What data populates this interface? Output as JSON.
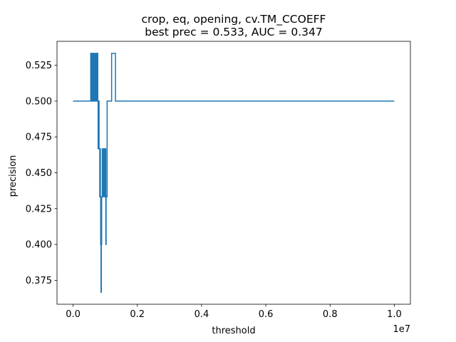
{
  "chart_data": {
    "type": "line",
    "title": "crop, eq, opening, cv.TM_CCOEFF",
    "subtitle": "best prec = 0.533, AUC = 0.347",
    "xlabel": "threshold",
    "ylabel": "precision",
    "x_offset_label": "1e7",
    "xlim": [
      -0.05,
      1.05
    ],
    "ylim": [
      0.3583,
      0.5417
    ],
    "x_ticks": [
      0.0,
      0.2,
      0.4,
      0.6,
      0.8,
      1.0
    ],
    "x_tick_labels": [
      "0.0",
      "0.2",
      "0.4",
      "0.6",
      "0.8",
      "1.0"
    ],
    "y_ticks": [
      0.375,
      0.4,
      0.425,
      0.45,
      0.475,
      0.5,
      0.525
    ],
    "y_tick_labels": [
      "0.375",
      "0.400",
      "0.425",
      "0.450",
      "0.475",
      "0.500",
      "0.525"
    ],
    "grid": false,
    "series": [
      {
        "color": "#1f77b4",
        "points": [
          [
            0.0,
            0.5
          ],
          [
            0.055,
            0.5
          ],
          [
            0.055,
            0.5333
          ],
          [
            0.057,
            0.5333
          ],
          [
            0.057,
            0.5
          ],
          [
            0.059,
            0.5
          ],
          [
            0.059,
            0.5333
          ],
          [
            0.061,
            0.5333
          ],
          [
            0.061,
            0.5
          ],
          [
            0.063,
            0.5
          ],
          [
            0.063,
            0.5333
          ],
          [
            0.065,
            0.5333
          ],
          [
            0.065,
            0.5
          ],
          [
            0.067,
            0.5
          ],
          [
            0.067,
            0.5333
          ],
          [
            0.069,
            0.5333
          ],
          [
            0.069,
            0.5
          ],
          [
            0.071,
            0.5
          ],
          [
            0.071,
            0.5333
          ],
          [
            0.073,
            0.5333
          ],
          [
            0.073,
            0.5
          ],
          [
            0.075,
            0.5
          ],
          [
            0.075,
            0.5333
          ],
          [
            0.077,
            0.5333
          ],
          [
            0.077,
            0.5
          ],
          [
            0.078,
            0.5
          ],
          [
            0.078,
            0.4667
          ],
          [
            0.08,
            0.4667
          ],
          [
            0.08,
            0.5
          ],
          [
            0.081,
            0.5
          ],
          [
            0.081,
            0.4667
          ],
          [
            0.083,
            0.4667
          ],
          [
            0.083,
            0.4333
          ],
          [
            0.084,
            0.4333
          ],
          [
            0.084,
            0.4667
          ],
          [
            0.085,
            0.4667
          ],
          [
            0.085,
            0.4333
          ],
          [
            0.086,
            0.4333
          ],
          [
            0.086,
            0.4
          ],
          [
            0.087,
            0.4
          ],
          [
            0.087,
            0.3667
          ],
          [
            0.088,
            0.3667
          ],
          [
            0.088,
            0.4
          ],
          [
            0.089,
            0.4
          ],
          [
            0.089,
            0.4333
          ],
          [
            0.091,
            0.4333
          ],
          [
            0.091,
            0.4667
          ],
          [
            0.093,
            0.4667
          ],
          [
            0.093,
            0.4333
          ],
          [
            0.094,
            0.4333
          ],
          [
            0.094,
            0.4667
          ],
          [
            0.096,
            0.4667
          ],
          [
            0.096,
            0.4333
          ],
          [
            0.097,
            0.4333
          ],
          [
            0.097,
            0.4667
          ],
          [
            0.099,
            0.4667
          ],
          [
            0.099,
            0.4333
          ],
          [
            0.1,
            0.4333
          ],
          [
            0.1,
            0.4667
          ],
          [
            0.102,
            0.4667
          ],
          [
            0.102,
            0.4
          ],
          [
            0.103,
            0.4
          ],
          [
            0.103,
            0.4333
          ],
          [
            0.106,
            0.4333
          ],
          [
            0.106,
            0.5
          ],
          [
            0.12,
            0.5
          ],
          [
            0.12,
            0.5333
          ],
          [
            0.132,
            0.5333
          ],
          [
            0.132,
            0.5
          ],
          [
            1.0,
            0.5
          ]
        ]
      }
    ]
  }
}
